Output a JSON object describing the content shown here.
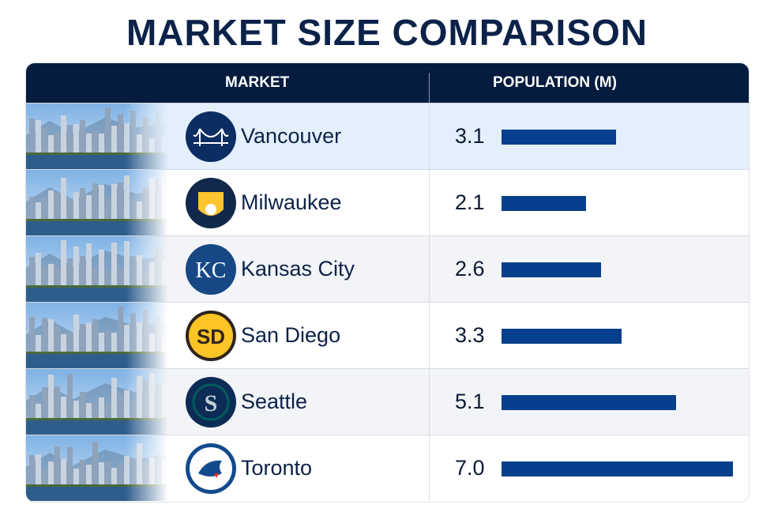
{
  "title": "MARKET SIZE COMPARISON",
  "headers": {
    "market": "MARKET",
    "population": "POPULATION (M)"
  },
  "chart_data": {
    "type": "bar",
    "title": "MARKET SIZE COMPARISON",
    "categories": [
      "Vancouver",
      "Milwaukee",
      "Kansas City",
      "San Diego",
      "Seattle",
      "Toronto"
    ],
    "values": [
      3.1,
      2.1,
      2.6,
      3.3,
      5.1,
      7.0
    ],
    "labels": [
      "3.1",
      "2.1",
      "2.6",
      "3.3",
      "5.1",
      "7.0"
    ],
    "ylabel": "POPULATION (M)",
    "orientation": "horizontal",
    "bar_color": "#063f8c"
  },
  "rows": [
    {
      "name": "Vancouver",
      "value": "3.1",
      "logo": "bridge-icon",
      "logo_bg": "#0c2d62",
      "bg": "#e3f0fc"
    },
    {
      "name": "Milwaukee",
      "value": "2.1",
      "logo": "ball-glove-icon",
      "logo_bg": "#12284b",
      "bg": "#ffffff"
    },
    {
      "name": "Kansas City",
      "value": "2.6",
      "logo": "kc-monogram-icon",
      "logo_bg": "#174885",
      "bg": "#f3f4f7"
    },
    {
      "name": "San Diego",
      "value": "3.3",
      "logo": "sd-monogram-icon",
      "logo_bg": "#2f241d",
      "bg": "#ffffff"
    },
    {
      "name": "Seattle",
      "value": "5.1",
      "logo": "s-compass-icon",
      "logo_bg": "#0c2c56",
      "bg": "#f3f4f7"
    },
    {
      "name": "Toronto",
      "value": "7.0",
      "logo": "blue-jay-icon",
      "logo_bg": "#134a8e",
      "bg": "#ffffff"
    }
  ]
}
